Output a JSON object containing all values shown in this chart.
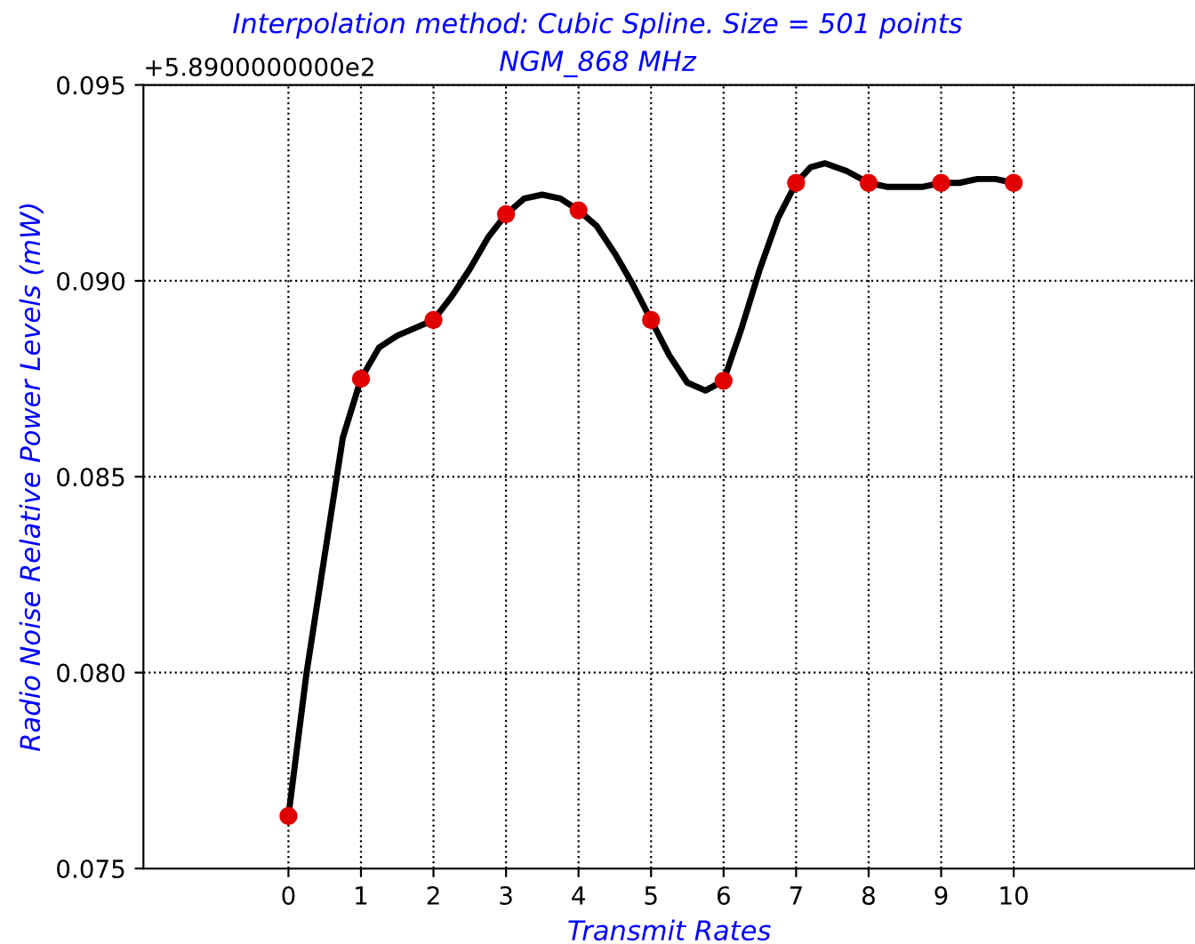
{
  "chart_data": {
    "type": "line",
    "title": "Interpolation method: Cubic Spline. Size = 501 points",
    "subtitle": "NGM_868 MHz",
    "xlabel": "Transmit Rates",
    "ylabel": "Radio Noise Relative Power Levels (mW)",
    "annotations": [
      "+5.8900000000e2"
    ],
    "x": [
      0,
      1,
      2,
      3,
      4,
      5,
      6,
      7,
      8,
      9,
      10
    ],
    "series": [
      {
        "color": "#000000",
        "marker": "none",
        "x": [
          0,
          0.25,
          0.5,
          0.75,
          1,
          1.25,
          1.5,
          1.75,
          2,
          2.25,
          2.5,
          2.75,
          3,
          3.25,
          3.5,
          3.75,
          4,
          4.25,
          4.5,
          4.75,
          5,
          5.25,
          5.5,
          5.75,
          6,
          6.25,
          6.5,
          6.75,
          7,
          7.2,
          7.4,
          7.7,
          8,
          8.25,
          8.5,
          8.75,
          9,
          9.25,
          9.5,
          9.75,
          10
        ],
        "values": [
          0.07634,
          0.08,
          0.083,
          0.086,
          0.0875,
          0.0883,
          0.0886,
          0.0888,
          0.089,
          0.0896,
          0.0903,
          0.0911,
          0.0917,
          0.0921,
          0.0922,
          0.0921,
          0.0918,
          0.0914,
          0.0907,
          0.0899,
          0.089,
          0.0881,
          0.0874,
          0.0872,
          0.08745,
          0.0888,
          0.0903,
          0.0916,
          0.0925,
          0.0929,
          0.093,
          0.0928,
          0.0925,
          0.0924,
          0.0924,
          0.0924,
          0.0925,
          0.0925,
          0.0926,
          0.0926,
          0.0925
        ]
      },
      {
        "type": "scatter",
        "color": "#e00000",
        "marker": "circle",
        "values": [
          0.07634,
          0.0875,
          0.089,
          0.0917,
          0.0918,
          0.089,
          0.08745,
          0.0925,
          0.0925,
          0.0925,
          0.0925
        ]
      }
    ],
    "xlim": [
      -2,
      12.5
    ],
    "xticks": [
      0,
      1,
      2,
      3,
      4,
      5,
      6,
      7,
      8,
      9,
      10
    ],
    "ylim": [
      0.075,
      0.095
    ],
    "yticks": [
      0.075,
      {
        "value": 0.08,
        "label": "0.080"
      },
      0.085,
      {
        "value": 0.09,
        "label": "0.090"
      },
      0.095
    ],
    "grid": true
  }
}
